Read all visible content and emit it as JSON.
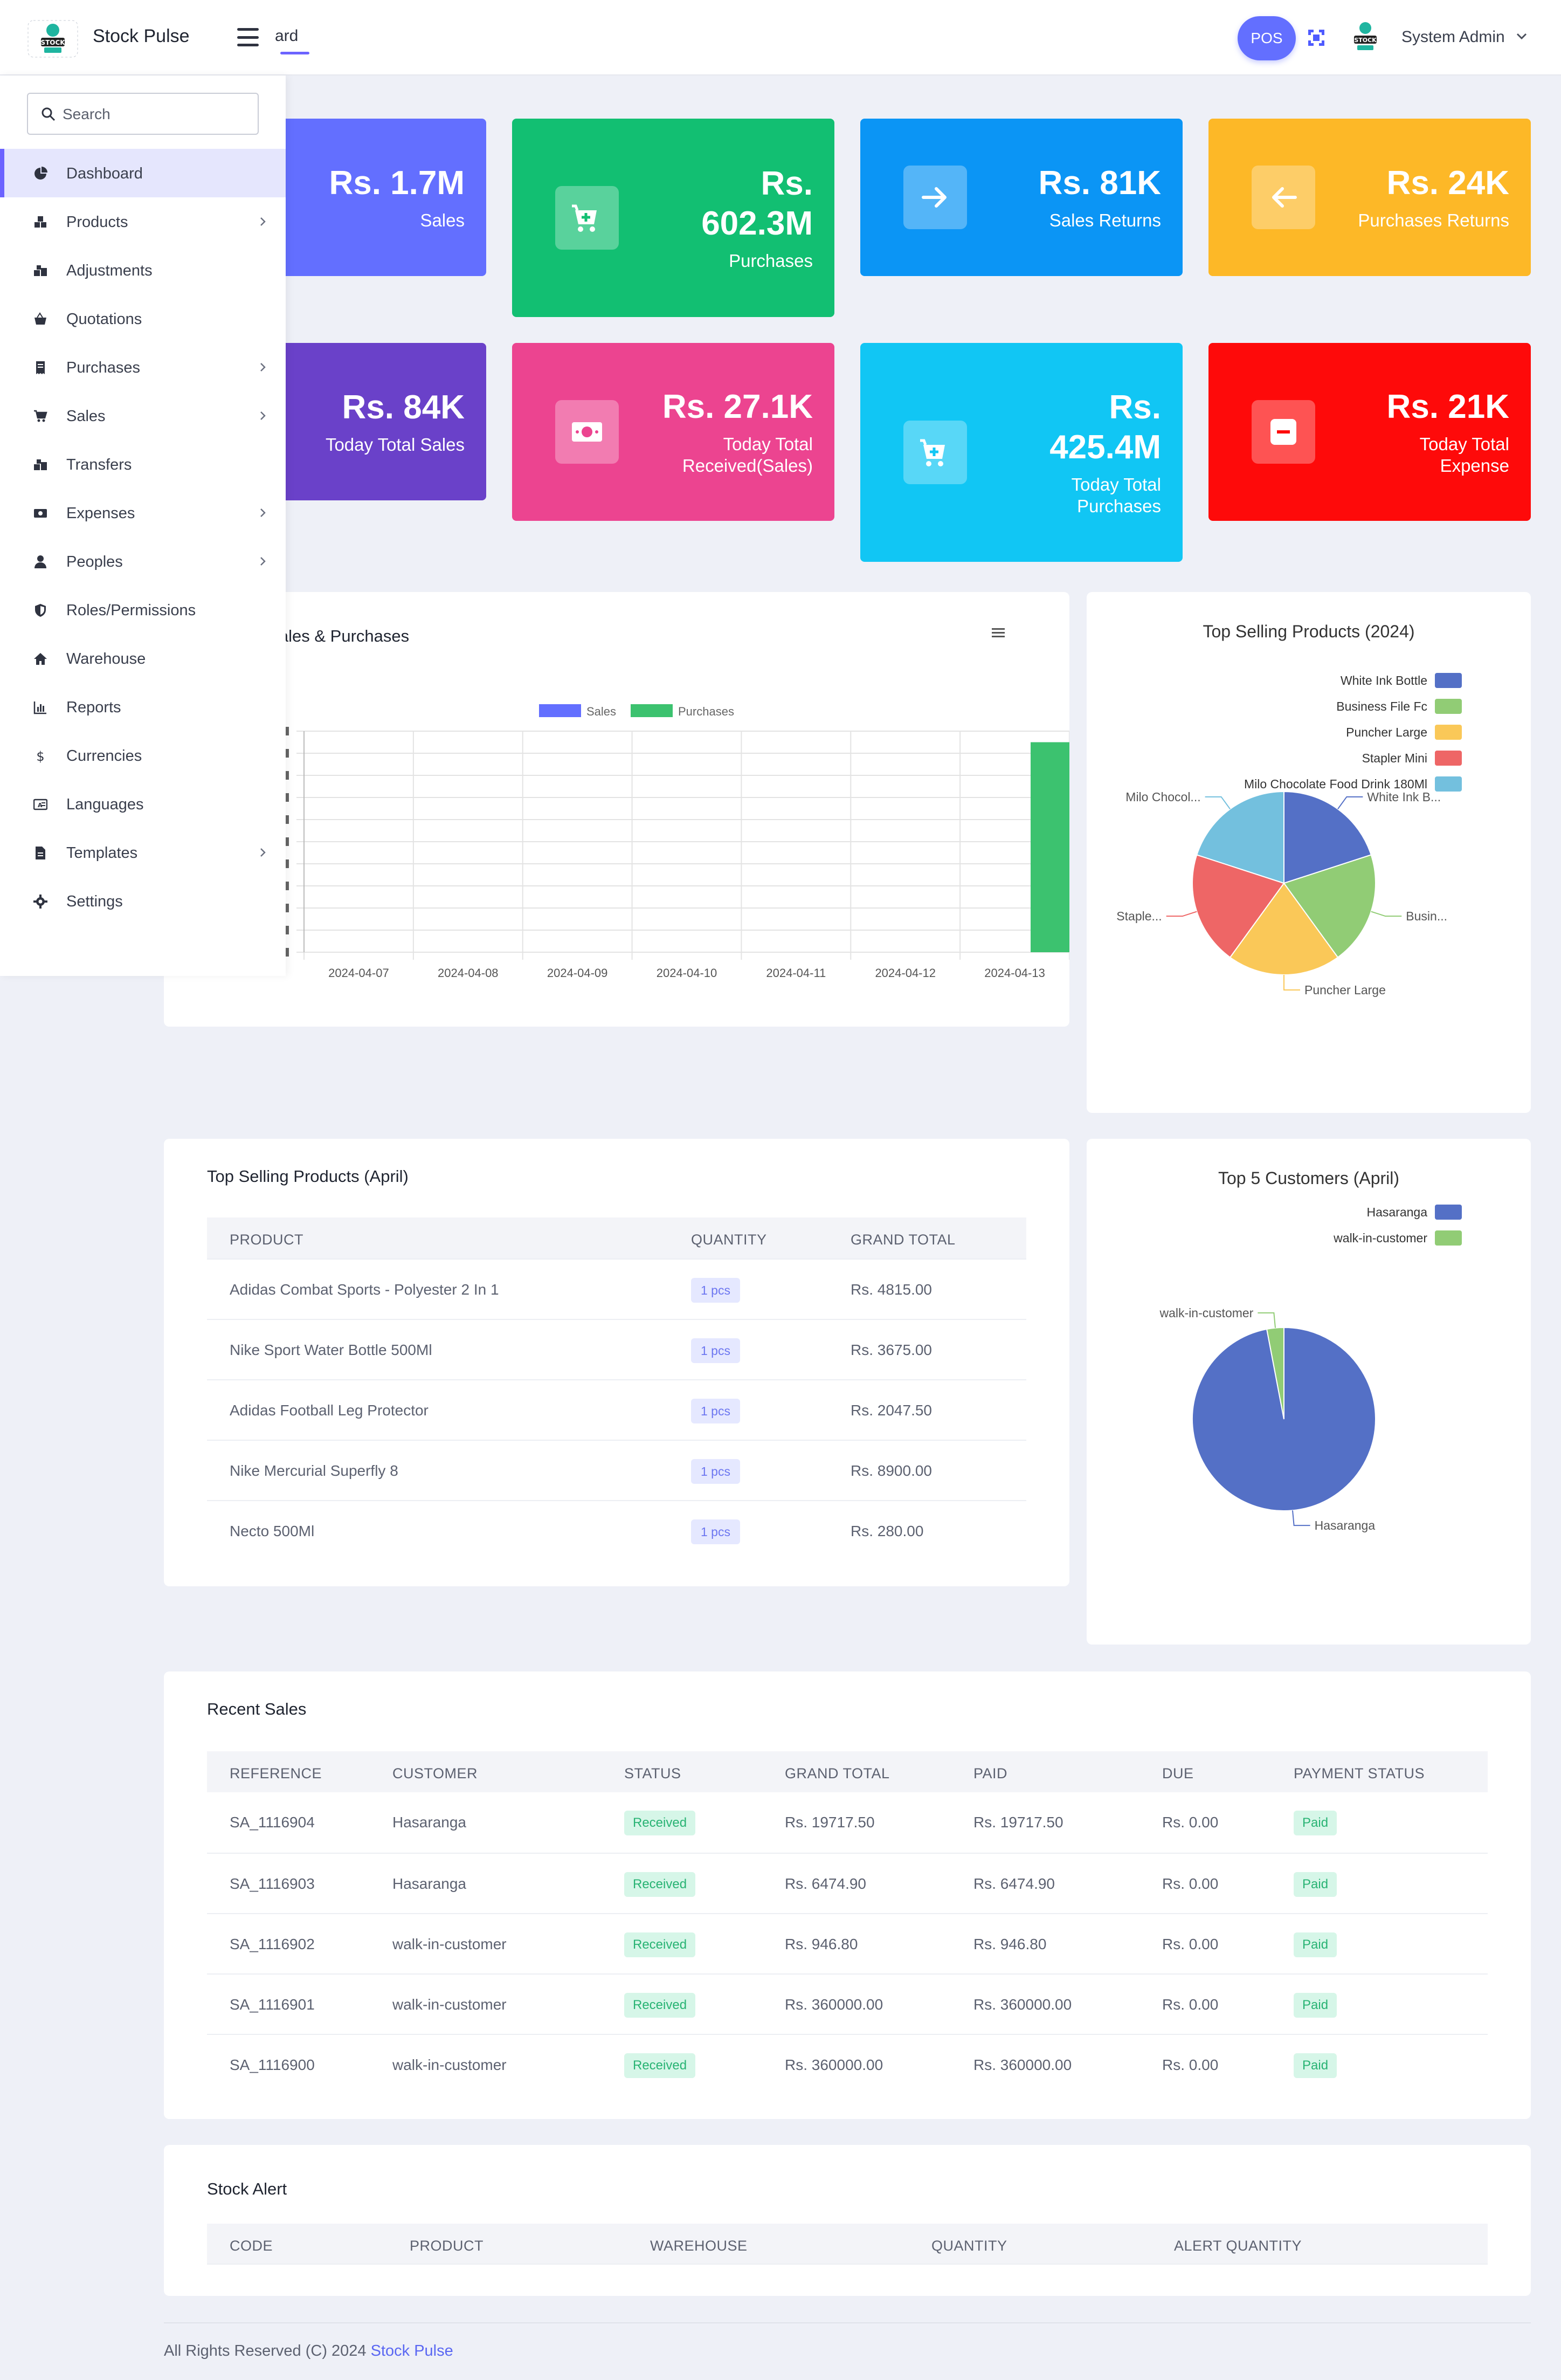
{
  "header": {
    "brand": "Stock Pulse",
    "breadcrumb": "ard",
    "pos_label": "POS",
    "user_name": "System Admin"
  },
  "sidebar": {
    "search_placeholder": "Search",
    "items": [
      {
        "label": "Dashboard",
        "icon": "pie-chart-icon",
        "active": true,
        "has_children": false
      },
      {
        "label": "Products",
        "icon": "boxes-icon",
        "has_children": true
      },
      {
        "label": "Adjustments",
        "icon": "boxes-adjust-icon",
        "has_children": false
      },
      {
        "label": "Quotations",
        "icon": "basket-icon",
        "has_children": false
      },
      {
        "label": "Purchases",
        "icon": "receipt-icon",
        "has_children": true
      },
      {
        "label": "Sales",
        "icon": "cart-icon",
        "has_children": true
      },
      {
        "label": "Transfers",
        "icon": "transfer-icon",
        "has_children": false
      },
      {
        "label": "Expenses",
        "icon": "money-icon",
        "has_children": true
      },
      {
        "label": "Peoples",
        "icon": "person-icon",
        "has_children": true
      },
      {
        "label": "Roles/Permissions",
        "icon": "shield-icon",
        "has_children": false
      },
      {
        "label": "Warehouse",
        "icon": "home-icon",
        "has_children": false
      },
      {
        "label": "Reports",
        "icon": "bar-chart-icon",
        "has_children": false
      },
      {
        "label": "Currencies",
        "icon": "dollar-icon",
        "has_children": false
      },
      {
        "label": "Languages",
        "icon": "language-icon",
        "has_children": false
      },
      {
        "label": "Templates",
        "icon": "document-icon",
        "has_children": true
      },
      {
        "label": "Settings",
        "icon": "gear-icon",
        "has_children": false
      }
    ]
  },
  "stats": [
    {
      "value": "Rs. 1.7M",
      "label": "Sales",
      "color": "#636fff",
      "icon": ""
    },
    {
      "value": "Rs. 602.3M",
      "label": "Purchases",
      "color": "#12bf72",
      "icon": "cart-plus-icon"
    },
    {
      "value": "Rs. 81K",
      "label": "Sales Returns",
      "color": "#0b95f5",
      "icon": "arrow-right-icon"
    },
    {
      "value": "Rs. 24K",
      "label": "Purchases Returns",
      "color": "#fdb827",
      "icon": "arrow-left-icon"
    },
    {
      "value": "Rs. 84K",
      "label": "Today Total Sales",
      "color": "#6a41c9",
      "icon": ""
    },
    {
      "value": "Rs. 27.1K",
      "label": "Today Total Received(Sales)",
      "color": "#ec4490",
      "icon": "cash-icon"
    },
    {
      "value": "Rs. 425.4M",
      "label": "Today Total Purchases",
      "color": "#11c6f4",
      "icon": "cart-plus-icon"
    },
    {
      "value": "Rs. 21K",
      "label": "Today Total Expense",
      "color": "#fe0a0a",
      "icon": "minus-icon"
    }
  ],
  "sales_purchases_chart": {
    "title_fragment": ": Sales & Purchases",
    "menu_icon": "menu-lines-icon"
  },
  "chart_data": [
    {
      "type": "bar",
      "title": "",
      "categories": [
        "2024-04-07",
        "2024-04-08",
        "2024-04-09",
        "2024-04-10",
        "2024-04-11",
        "2024-04-12",
        "2024-04-13"
      ],
      "series": [
        {
          "name": "Sales",
          "color": "#636fff",
          "values": [
            0,
            0,
            0,
            0,
            0,
            0,
            0
          ]
        },
        {
          "name": "Purchases",
          "color": "#3cc26f",
          "values": [
            0,
            0,
            0,
            0,
            0,
            0,
            95
          ]
        }
      ],
      "ylim": [
        0,
        100
      ],
      "legend": "top-center",
      "grid": true
    },
    {
      "type": "pie",
      "title": "Top Selling Products (2024)",
      "legend": "top-right",
      "slices": [
        {
          "label": "White Ink Bottle",
          "short_label": "White Ink B...",
          "value": 20,
          "color": "#5470c6"
        },
        {
          "label": "Business File Fc",
          "short_label": "Busin...",
          "value": 20,
          "color": "#91cc75"
        },
        {
          "label": "Puncher Large",
          "short_label": "Puncher Large",
          "value": 20,
          "color": "#fac858"
        },
        {
          "label": "Stapler Mini",
          "short_label": "Staple...",
          "value": 20,
          "color": "#ee6666"
        },
        {
          "label": "Milo Chocolate Food Drink 180Ml",
          "short_label": "Milo Chocol...",
          "value": 20,
          "color": "#73c0de"
        }
      ]
    },
    {
      "type": "pie",
      "title": "Top 5 Customers (April)",
      "legend": "top-right",
      "slices": [
        {
          "label": "Hasaranga",
          "short_label": "Hasaranga",
          "value": 97,
          "color": "#5470c6"
        },
        {
          "label": "walk-in-customer",
          "short_label": "walk-in-customer",
          "value": 3,
          "color": "#91cc75"
        }
      ]
    }
  ],
  "top_products": {
    "title": "Top Selling Products (April)",
    "columns": [
      "PRODUCT",
      "QUANTITY",
      "GRAND TOTAL"
    ],
    "rows": [
      {
        "product": "Adidas Combat Sports - Polyester 2 In 1",
        "qty": "1 pcs",
        "total": "Rs. 4815.00"
      },
      {
        "product": "Nike Sport Water Bottle 500Ml",
        "qty": "1 pcs",
        "total": "Rs. 3675.00"
      },
      {
        "product": "Adidas Football Leg Protector",
        "qty": "1 pcs",
        "total": "Rs. 2047.50"
      },
      {
        "product": "Nike Mercurial Superfly 8",
        "qty": "1 pcs",
        "total": "Rs. 8900.00"
      },
      {
        "product": "Necto 500Ml",
        "qty": "1 pcs",
        "total": "Rs. 280.00"
      }
    ]
  },
  "recent_sales": {
    "title": "Recent Sales",
    "columns": [
      "REFERENCE",
      "CUSTOMER",
      "STATUS",
      "GRAND TOTAL",
      "PAID",
      "DUE",
      "PAYMENT STATUS"
    ],
    "rows": [
      {
        "ref": "SA_1116904",
        "customer": "Hasaranga",
        "status": "Received",
        "total": "Rs. 19717.50",
        "paid": "Rs. 19717.50",
        "due": "Rs. 0.00",
        "payment": "Paid"
      },
      {
        "ref": "SA_1116903",
        "customer": "Hasaranga",
        "status": "Received",
        "total": "Rs. 6474.90",
        "paid": "Rs. 6474.90",
        "due": "Rs. 0.00",
        "payment": "Paid"
      },
      {
        "ref": "SA_1116902",
        "customer": "walk-in-customer",
        "status": "Received",
        "total": "Rs. 946.80",
        "paid": "Rs. 946.80",
        "due": "Rs. 0.00",
        "payment": "Paid"
      },
      {
        "ref": "SA_1116901",
        "customer": "walk-in-customer",
        "status": "Received",
        "total": "Rs. 360000.00",
        "paid": "Rs. 360000.00",
        "due": "Rs. 0.00",
        "payment": "Paid"
      },
      {
        "ref": "SA_1116900",
        "customer": "walk-in-customer",
        "status": "Received",
        "total": "Rs. 360000.00",
        "paid": "Rs. 360000.00",
        "due": "Rs. 0.00",
        "payment": "Paid"
      }
    ]
  },
  "stock_alert": {
    "title": "Stock Alert",
    "columns": [
      "CODE",
      "PRODUCT",
      "WAREHOUSE",
      "QUANTITY",
      "ALERT QUANTITY"
    ]
  },
  "footer": {
    "text": "All Rights Reserved (C) 2024",
    "brand_link": "Stock Pulse"
  }
}
